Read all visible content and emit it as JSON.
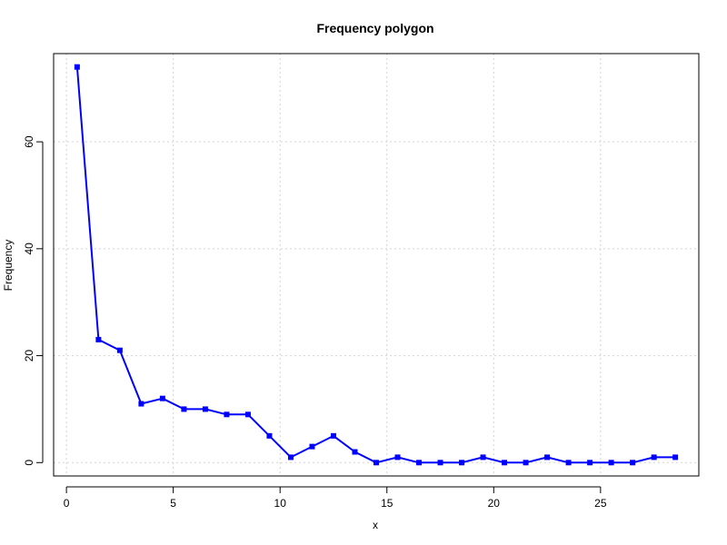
{
  "chart_data": {
    "type": "line",
    "title": "Frequency polygon",
    "xlabel": "x",
    "ylabel": "Frequency",
    "xlim": [
      -0.6,
      29.6
    ],
    "ylim": [
      -2.5,
      76.5
    ],
    "x_ticks": [
      0,
      5,
      10,
      15,
      20,
      25
    ],
    "y_ticks": [
      0,
      20,
      40,
      60
    ],
    "grid": true,
    "series": [
      {
        "color": "#0000FF",
        "marker": "square",
        "x": [
          0.5,
          1.5,
          2.5,
          3.5,
          4.5,
          5.5,
          6.5,
          7.5,
          8.5,
          9.5,
          10.5,
          11.5,
          12.5,
          13.5,
          14.5,
          15.5,
          16.5,
          17.5,
          18.5,
          19.5,
          20.5,
          21.5,
          22.5,
          23.5,
          24.5,
          25.5,
          26.5,
          27.5,
          28.5
        ],
        "y": [
          74,
          23,
          21,
          11,
          12,
          10,
          10,
          9,
          9,
          5,
          1,
          3,
          5,
          2,
          0,
          1,
          0,
          0,
          0,
          1,
          0,
          0,
          1,
          0,
          0,
          0,
          0,
          1,
          1
        ]
      }
    ]
  },
  "colors": {
    "line": "#0000FF",
    "grid": "#D3D3D3",
    "axis": "#000000"
  }
}
